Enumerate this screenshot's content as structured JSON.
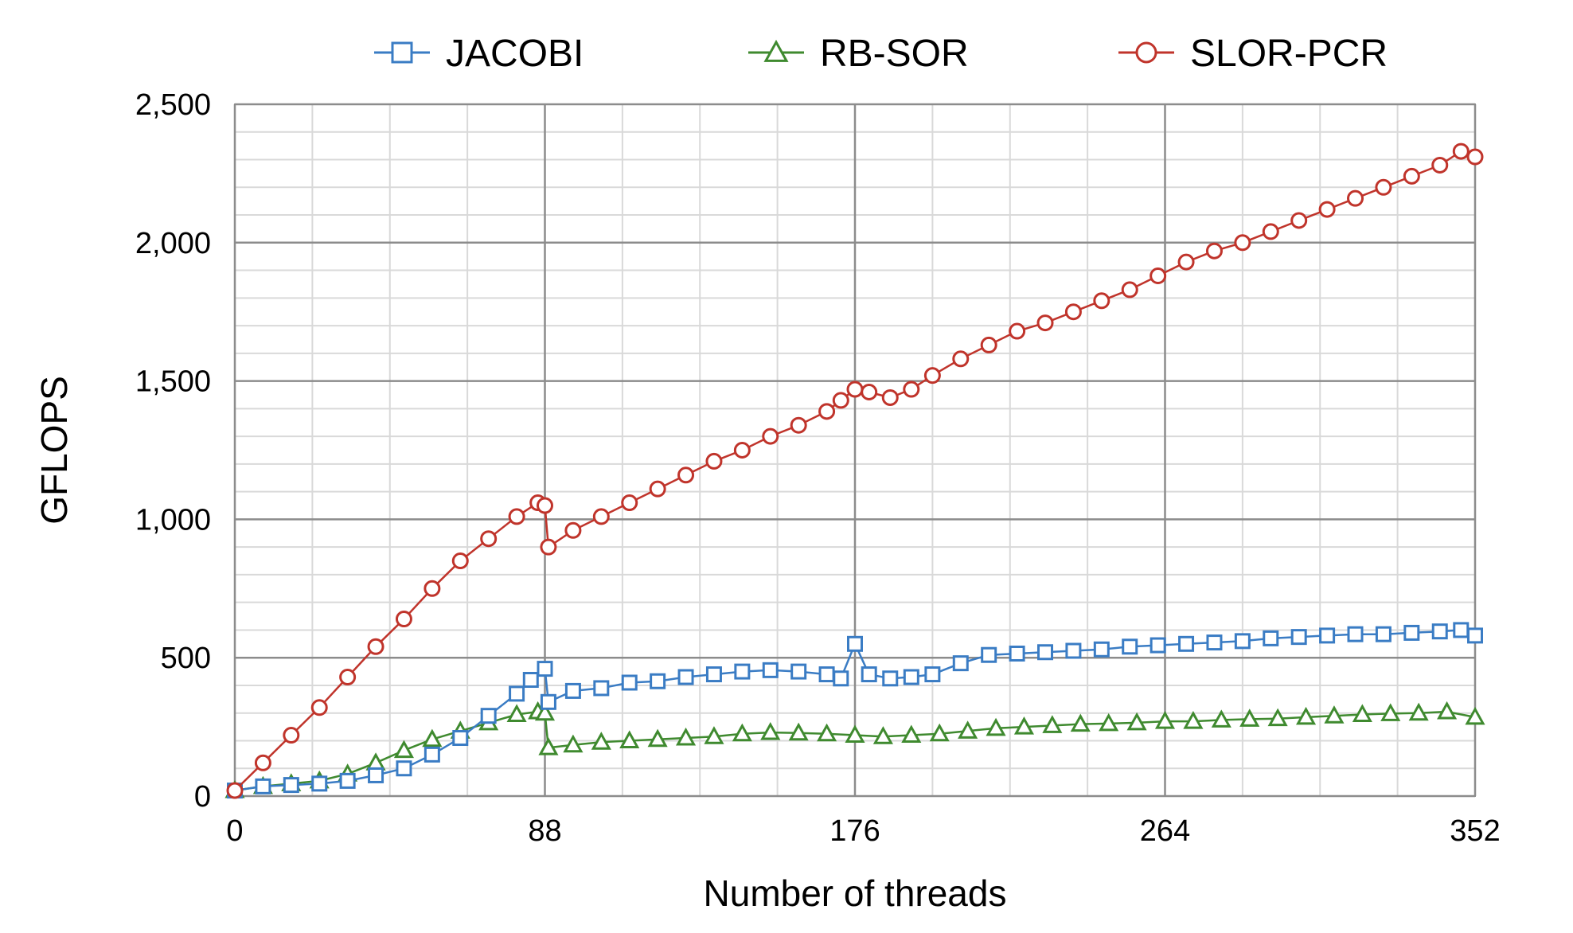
{
  "chart_data": {
    "type": "scatter",
    "title": "",
    "xlabel": "Number of threads",
    "ylabel": "GFLOPS",
    "xlim": [
      0,
      352
    ],
    "ylim": [
      0,
      2500
    ],
    "x_ticks": [
      0,
      88,
      176,
      264,
      352
    ],
    "x_tick_labels": [
      "0",
      "88",
      "176",
      "264",
      "352"
    ],
    "y_ticks": [
      0,
      500,
      1000,
      1500,
      2000,
      2500
    ],
    "y_tick_labels": [
      "0",
      "500",
      "1,000",
      "1,500",
      "2,000",
      "2,500"
    ],
    "minor_x_step": 22,
    "minor_y_step": 100,
    "grid": true,
    "legend_position": "top",
    "series": [
      {
        "name": "JACOBI",
        "marker": "square",
        "color": "#3a7cc4",
        "points": [
          [
            0,
            20
          ],
          [
            8,
            35
          ],
          [
            16,
            40
          ],
          [
            24,
            45
          ],
          [
            32,
            55
          ],
          [
            40,
            75
          ],
          [
            48,
            100
          ],
          [
            56,
            150
          ],
          [
            64,
            210
          ],
          [
            72,
            290
          ],
          [
            80,
            370
          ],
          [
            84,
            420
          ],
          [
            88,
            460
          ],
          [
            89,
            340
          ],
          [
            96,
            380
          ],
          [
            104,
            390
          ],
          [
            112,
            410
          ],
          [
            120,
            415
          ],
          [
            128,
            430
          ],
          [
            136,
            440
          ],
          [
            144,
            450
          ],
          [
            152,
            455
          ],
          [
            160,
            450
          ],
          [
            168,
            440
          ],
          [
            172,
            425
          ],
          [
            176,
            550
          ],
          [
            180,
            440
          ],
          [
            186,
            425
          ],
          [
            192,
            430
          ],
          [
            198,
            440
          ],
          [
            206,
            480
          ],
          [
            214,
            510
          ],
          [
            222,
            515
          ],
          [
            230,
            520
          ],
          [
            238,
            525
          ],
          [
            246,
            530
          ],
          [
            254,
            540
          ],
          [
            262,
            545
          ],
          [
            270,
            550
          ],
          [
            278,
            555
          ],
          [
            286,
            560
          ],
          [
            294,
            570
          ],
          [
            302,
            575
          ],
          [
            310,
            580
          ],
          [
            318,
            585
          ],
          [
            326,
            585
          ],
          [
            334,
            590
          ],
          [
            342,
            595
          ],
          [
            348,
            600
          ],
          [
            352,
            580
          ]
        ]
      },
      {
        "name": "RB-SOR",
        "marker": "triangle",
        "color": "#3f8a2f",
        "points": [
          [
            0,
            20
          ],
          [
            8,
            35
          ],
          [
            16,
            45
          ],
          [
            24,
            55
          ],
          [
            32,
            80
          ],
          [
            40,
            120
          ],
          [
            48,
            165
          ],
          [
            56,
            205
          ],
          [
            64,
            235
          ],
          [
            72,
            265
          ],
          [
            80,
            295
          ],
          [
            86,
            305
          ],
          [
            88,
            300
          ],
          [
            89,
            175
          ],
          [
            96,
            185
          ],
          [
            104,
            195
          ],
          [
            112,
            200
          ],
          [
            120,
            205
          ],
          [
            128,
            210
          ],
          [
            136,
            215
          ],
          [
            144,
            225
          ],
          [
            152,
            230
          ],
          [
            160,
            228
          ],
          [
            168,
            225
          ],
          [
            176,
            220
          ],
          [
            184,
            215
          ],
          [
            192,
            220
          ],
          [
            200,
            225
          ],
          [
            208,
            235
          ],
          [
            216,
            245
          ],
          [
            224,
            250
          ],
          [
            232,
            255
          ],
          [
            240,
            260
          ],
          [
            248,
            262
          ],
          [
            256,
            265
          ],
          [
            264,
            270
          ],
          [
            272,
            270
          ],
          [
            280,
            275
          ],
          [
            288,
            278
          ],
          [
            296,
            280
          ],
          [
            304,
            285
          ],
          [
            312,
            290
          ],
          [
            320,
            295
          ],
          [
            328,
            298
          ],
          [
            336,
            300
          ],
          [
            344,
            305
          ],
          [
            352,
            285
          ]
        ]
      },
      {
        "name": "SLOR-PCR",
        "marker": "circle",
        "color": "#c0342b",
        "points": [
          [
            0,
            20
          ],
          [
            8,
            120
          ],
          [
            16,
            220
          ],
          [
            24,
            320
          ],
          [
            32,
            430
          ],
          [
            40,
            540
          ],
          [
            48,
            640
          ],
          [
            56,
            750
          ],
          [
            64,
            850
          ],
          [
            72,
            930
          ],
          [
            80,
            1010
          ],
          [
            86,
            1060
          ],
          [
            88,
            1050
          ],
          [
            89,
            900
          ],
          [
            96,
            960
          ],
          [
            104,
            1010
          ],
          [
            112,
            1060
          ],
          [
            120,
            1110
          ],
          [
            128,
            1160
          ],
          [
            136,
            1210
          ],
          [
            144,
            1250
          ],
          [
            152,
            1300
          ],
          [
            160,
            1340
          ],
          [
            168,
            1390
          ],
          [
            172,
            1430
          ],
          [
            176,
            1470
          ],
          [
            180,
            1460
          ],
          [
            186,
            1440
          ],
          [
            192,
            1470
          ],
          [
            198,
            1520
          ],
          [
            206,
            1580
          ],
          [
            214,
            1630
          ],
          [
            222,
            1680
          ],
          [
            230,
            1710
          ],
          [
            238,
            1750
          ],
          [
            246,
            1790
          ],
          [
            254,
            1830
          ],
          [
            262,
            1880
          ],
          [
            270,
            1930
          ],
          [
            278,
            1970
          ],
          [
            286,
            2000
          ],
          [
            294,
            2040
          ],
          [
            302,
            2080
          ],
          [
            310,
            2120
          ],
          [
            318,
            2160
          ],
          [
            326,
            2200
          ],
          [
            334,
            2240
          ],
          [
            342,
            2280
          ],
          [
            348,
            2330
          ],
          [
            352,
            2310
          ]
        ]
      }
    ]
  }
}
